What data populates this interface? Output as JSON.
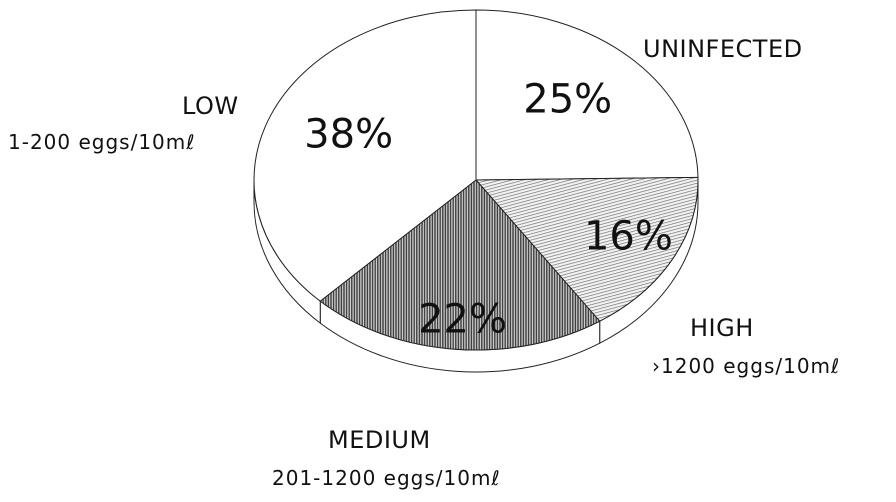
{
  "chart_data": {
    "type": "pie",
    "title": "",
    "slices": [
      {
        "name": "UNINFECTED",
        "range": "",
        "value": 25,
        "label": "25%",
        "fill": "white"
      },
      {
        "name": "HIGH",
        "range": "›1200 eggs/10mℓ",
        "value": 16,
        "label": "16%",
        "fill": "light-hatch"
      },
      {
        "name": "MEDIUM",
        "range": "201-1200 eggs/10mℓ",
        "value": 22,
        "label": "22%",
        "fill": "dark-hatch"
      },
      {
        "name": "LOW",
        "range": "1-200 eggs/10mℓ",
        "value": 38,
        "label": "38%",
        "fill": "white"
      }
    ],
    "exploded_3d": true,
    "legend": "none",
    "colors": {
      "outline": "#222222",
      "white_fill": "#ffffff",
      "light_hatch": "#c8c8c8",
      "dark_hatch": "#8a8a8a"
    }
  }
}
